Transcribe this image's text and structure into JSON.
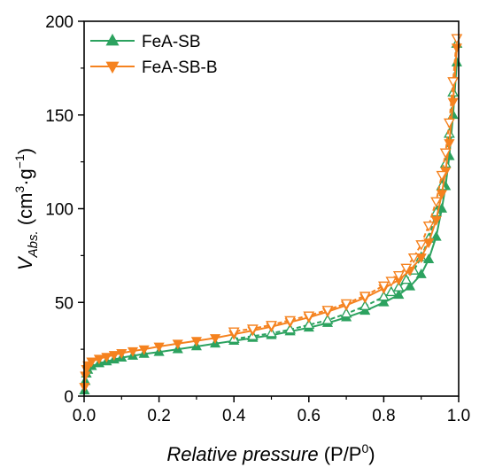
{
  "chart_data": {
    "type": "line",
    "xlabel_italic": "Relative pressure",
    "xlabel_rest": " (P/P",
    "xlabel_sup": "0",
    "xlabel_close": ")",
    "ylabel_main": "V",
    "ylabel_sub": "Abs.",
    "ylabel_unit_open": " (cm",
    "ylabel_unit_sup1": "3",
    "ylabel_unit_mid": "·g",
    "ylabel_unit_sup2": "−1",
    "ylabel_unit_close": ")",
    "xlim": [
      0.0,
      1.0
    ],
    "ylim": [
      0,
      200
    ],
    "xticks": [
      "0.0",
      "0.2",
      "0.4",
      "0.6",
      "0.8",
      "1.0"
    ],
    "yticks": [
      "0",
      "50",
      "100",
      "150",
      "200"
    ],
    "legend_position": "top-left",
    "series": [
      {
        "name": "FeA-SB",
        "color": "#2ca25f",
        "marker_up": true,
        "adsorption": [
          [
            0.001,
            3
          ],
          [
            0.003,
            8
          ],
          [
            0.006,
            12
          ],
          [
            0.01,
            14
          ],
          [
            0.02,
            16
          ],
          [
            0.04,
            17.5
          ],
          [
            0.06,
            18.5
          ],
          [
            0.08,
            19.5
          ],
          [
            0.1,
            20.5
          ],
          [
            0.13,
            21.5
          ],
          [
            0.16,
            22.5
          ],
          [
            0.2,
            23.5
          ],
          [
            0.25,
            25
          ],
          [
            0.3,
            26.5
          ],
          [
            0.35,
            28
          ],
          [
            0.4,
            29.5
          ],
          [
            0.45,
            31
          ],
          [
            0.5,
            32.5
          ],
          [
            0.55,
            34.5
          ],
          [
            0.6,
            36.5
          ],
          [
            0.65,
            39
          ],
          [
            0.7,
            42
          ],
          [
            0.75,
            45.5
          ],
          [
            0.8,
            50
          ],
          [
            0.84,
            54
          ],
          [
            0.87,
            58.5
          ],
          [
            0.9,
            65
          ],
          [
            0.92,
            73
          ],
          [
            0.94,
            85
          ],
          [
            0.955,
            100
          ],
          [
            0.965,
            112
          ],
          [
            0.975,
            128
          ],
          [
            0.985,
            150
          ],
          [
            0.995,
            178
          ]
        ],
        "desorption": [
          [
            0.995,
            188
          ],
          [
            0.985,
            162
          ],
          [
            0.975,
            140
          ],
          [
            0.965,
            124
          ],
          [
            0.955,
            112
          ],
          [
            0.94,
            98
          ],
          [
            0.92,
            84
          ],
          [
            0.9,
            74
          ],
          [
            0.88,
            67
          ],
          [
            0.86,
            62
          ],
          [
            0.84,
            58
          ],
          [
            0.82,
            55.5
          ],
          [
            0.8,
            53
          ],
          [
            0.75,
            48
          ],
          [
            0.7,
            44
          ],
          [
            0.65,
            40.5
          ],
          [
            0.6,
            38
          ],
          [
            0.55,
            35.5
          ],
          [
            0.5,
            33.5
          ],
          [
            0.45,
            32
          ],
          [
            0.4,
            30.5
          ]
        ]
      },
      {
        "name": "FeA-SB-B",
        "color": "#f5821f",
        "marker_up": false,
        "adsorption": [
          [
            0.001,
            5
          ],
          [
            0.003,
            11
          ],
          [
            0.006,
            14.5
          ],
          [
            0.01,
            16.5
          ],
          [
            0.02,
            18.5
          ],
          [
            0.04,
            20
          ],
          [
            0.06,
            21
          ],
          [
            0.08,
            22
          ],
          [
            0.1,
            23
          ],
          [
            0.13,
            24
          ],
          [
            0.16,
            25
          ],
          [
            0.2,
            26.5
          ],
          [
            0.25,
            28
          ],
          [
            0.3,
            29.5
          ],
          [
            0.35,
            31
          ],
          [
            0.4,
            33
          ],
          [
            0.45,
            35
          ],
          [
            0.5,
            37
          ],
          [
            0.55,
            39.5
          ],
          [
            0.6,
            42
          ],
          [
            0.65,
            45
          ],
          [
            0.7,
            48.5
          ],
          [
            0.75,
            52.5
          ],
          [
            0.8,
            57.5
          ],
          [
            0.84,
            62
          ],
          [
            0.87,
            67
          ],
          [
            0.9,
            74
          ],
          [
            0.92,
            82
          ],
          [
            0.94,
            94
          ],
          [
            0.955,
            108
          ],
          [
            0.965,
            120
          ],
          [
            0.975,
            135
          ],
          [
            0.985,
            157
          ],
          [
            0.995,
            186
          ]
        ],
        "desorption": [
          [
            0.995,
            191
          ],
          [
            0.985,
            168
          ],
          [
            0.975,
            146
          ],
          [
            0.965,
            130
          ],
          [
            0.955,
            118
          ],
          [
            0.94,
            104
          ],
          [
            0.92,
            91
          ],
          [
            0.9,
            81
          ],
          [
            0.88,
            74
          ],
          [
            0.86,
            68.5
          ],
          [
            0.84,
            64.5
          ],
          [
            0.82,
            61.5
          ],
          [
            0.8,
            59
          ],
          [
            0.75,
            53.5
          ],
          [
            0.7,
            49.5
          ],
          [
            0.65,
            46
          ],
          [
            0.6,
            43
          ],
          [
            0.55,
            40.5
          ],
          [
            0.5,
            38
          ],
          [
            0.45,
            36
          ],
          [
            0.4,
            34.5
          ]
        ]
      }
    ]
  }
}
